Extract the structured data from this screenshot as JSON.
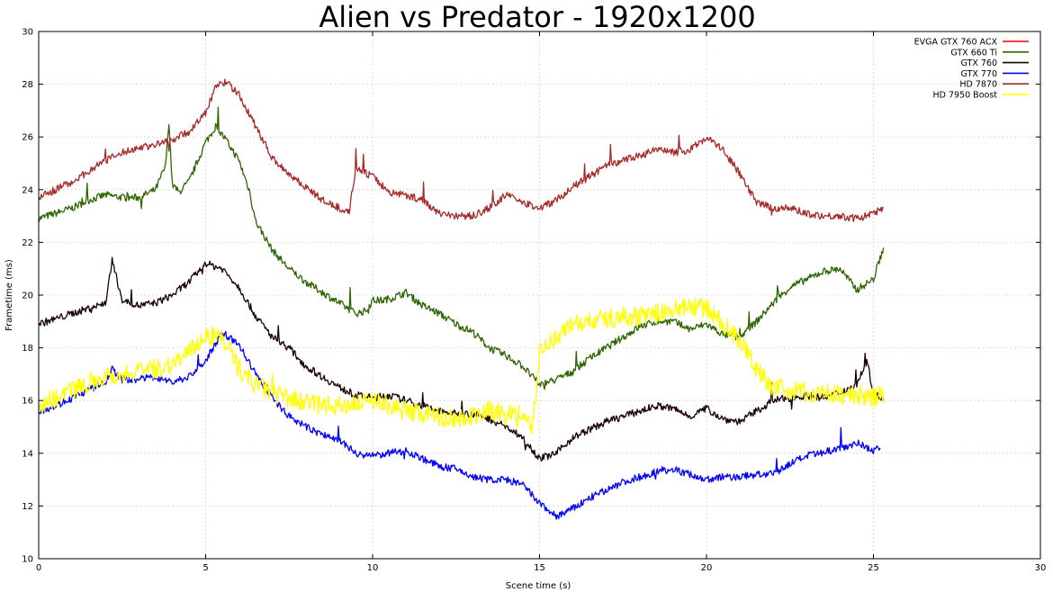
{
  "chart_data": {
    "type": "line",
    "title": "Alien vs Predator - 1920x1200",
    "xlabel": "Scene time (s)",
    "ylabel": "Frametime (ms)",
    "xlim": [
      0,
      30
    ],
    "ylim": [
      10,
      30
    ],
    "xticks": [
      0,
      5,
      10,
      15,
      20,
      25,
      30
    ],
    "yticks": [
      10,
      12,
      14,
      16,
      18,
      20,
      22,
      24,
      26,
      28,
      30
    ],
    "xtick_labels": [
      "0",
      "5",
      "10",
      "15",
      "20",
      "25",
      "30"
    ],
    "ytick_labels": [
      "10",
      "12",
      "14",
      "16",
      "18",
      "20",
      "22",
      "24",
      "26",
      "28",
      "30"
    ],
    "grid": true,
    "legend_position": "top-right",
    "series": [
      {
        "name": "EVGA GTX 760 ACX",
        "color": "#ff0000",
        "x": [],
        "values": []
      },
      {
        "name": "GTX 660 Ti",
        "color": "#2d6500",
        "x": [
          0,
          0.5,
          1,
          1.5,
          2,
          2.5,
          3,
          3.5,
          3.8,
          3.9,
          4.0,
          4.2,
          4.5,
          5,
          5.3,
          5.6,
          6,
          6.3,
          6.5,
          7,
          7.5,
          8,
          8.5,
          9,
          9.5,
          9.8,
          10,
          10.3,
          10.6,
          11,
          11.5,
          12,
          12.5,
          13,
          13.5,
          14,
          14.5,
          15,
          15.5,
          16,
          16.5,
          17,
          17.5,
          18,
          18.5,
          19,
          19.5,
          20,
          20.5,
          21,
          21.5,
          22,
          22.5,
          23,
          23.5,
          24,
          24.5,
          25,
          25.3
        ],
        "values": [
          22.9,
          23.1,
          23.3,
          23.6,
          23.8,
          23.7,
          23.7,
          24.0,
          24.9,
          26.6,
          24.2,
          23.9,
          24.3,
          25.8,
          26.4,
          25.9,
          25.1,
          24.0,
          22.8,
          21.7,
          21.0,
          20.5,
          20.1,
          19.7,
          19.3,
          19.4,
          19.8,
          19.8,
          19.9,
          20.1,
          19.6,
          19.3,
          18.9,
          18.6,
          18.0,
          17.7,
          17.3,
          16.6,
          16.8,
          17.1,
          17.6,
          18.0,
          18.4,
          18.8,
          19.0,
          19.0,
          18.7,
          18.9,
          18.5,
          18.4,
          19.0,
          19.7,
          20.3,
          20.6,
          20.9,
          21.0,
          20.2,
          20.6,
          21.8
        ]
      },
      {
        "name": "GTX 760",
        "color": "#1a0000",
        "x": [
          0,
          0.5,
          1,
          1.5,
          2,
          2.2,
          2.5,
          3,
          3.5,
          4,
          4.5,
          5,
          5.5,
          6,
          6.5,
          7,
          7.5,
          8,
          8.5,
          9,
          9.5,
          10,
          10.5,
          11,
          11.5,
          12,
          12.5,
          13,
          13.5,
          14,
          14.5,
          15,
          15.5,
          16,
          16.5,
          17,
          17.5,
          18,
          18.5,
          19,
          19.5,
          20,
          20.5,
          21,
          21.5,
          22,
          22.5,
          23,
          23.5,
          24,
          24.5,
          24.8,
          25,
          25.3
        ],
        "values": [
          18.9,
          19.1,
          19.3,
          19.5,
          19.7,
          21.3,
          19.8,
          19.6,
          19.7,
          20.0,
          20.5,
          21.2,
          21.0,
          20.3,
          19.2,
          18.4,
          18.0,
          17.3,
          16.9,
          16.5,
          16.2,
          16.1,
          16.2,
          16.0,
          15.8,
          15.6,
          15.5,
          15.5,
          15.3,
          15.0,
          14.6,
          13.8,
          14.0,
          14.6,
          14.9,
          15.2,
          15.4,
          15.6,
          15.8,
          15.7,
          15.4,
          15.7,
          15.3,
          15.2,
          15.6,
          16.0,
          16.1,
          16.2,
          16.1,
          16.3,
          16.6,
          17.5,
          16.3,
          16.0
        ]
      },
      {
        "name": "GTX 770",
        "color": "#0000ff",
        "x": [
          0,
          0.5,
          1,
          1.5,
          2,
          2.2,
          2.5,
          3,
          3.5,
          4,
          4.5,
          5,
          5.5,
          6,
          6.5,
          7,
          7.5,
          8,
          8.5,
          9,
          9.5,
          10,
          10.5,
          11,
          11.5,
          12,
          12.5,
          13,
          13.5,
          14,
          14.5,
          15,
          15.5,
          16,
          16.5,
          17,
          17.5,
          18,
          18.5,
          19,
          19.5,
          20,
          20.5,
          21,
          21.5,
          22,
          22.5,
          23,
          23.5,
          24,
          24.5,
          25,
          25.2
        ],
        "values": [
          15.6,
          15.8,
          16.1,
          16.4,
          16.7,
          17.2,
          16.8,
          16.8,
          16.9,
          16.7,
          16.9,
          17.5,
          18.6,
          18.1,
          17.0,
          16.1,
          15.4,
          15.0,
          14.7,
          14.5,
          14.0,
          13.9,
          14.0,
          14.1,
          13.8,
          13.5,
          13.4,
          13.1,
          13.0,
          13.0,
          12.8,
          12.1,
          11.6,
          11.9,
          12.3,
          12.6,
          12.9,
          13.1,
          13.3,
          13.4,
          13.2,
          13.0,
          13.1,
          13.1,
          13.2,
          13.2,
          13.6,
          13.9,
          14.0,
          14.2,
          14.4,
          14.1,
          14.2
        ]
      },
      {
        "name": "HD 7870",
        "color": "#a52a2a",
        "x": [
          0,
          0.5,
          1,
          1.5,
          2,
          2.5,
          3,
          3.5,
          4,
          4.5,
          5,
          5.3,
          5.6,
          6,
          6.5,
          7,
          7.5,
          8,
          8.5,
          9,
          9.3,
          9.5,
          10,
          10.5,
          11,
          11.5,
          12,
          12.5,
          13,
          13.5,
          14,
          14.5,
          15,
          15.5,
          16,
          16.5,
          17,
          17.5,
          18,
          18.5,
          19,
          19.5,
          20,
          20.5,
          21,
          21.5,
          22,
          22.5,
          23,
          23.5,
          24,
          24.5,
          25,
          25.3
        ],
        "values": [
          23.7,
          24.0,
          24.3,
          24.7,
          25.1,
          25.4,
          25.6,
          25.7,
          25.9,
          26.2,
          26.9,
          27.9,
          28.1,
          27.6,
          26.4,
          25.2,
          24.6,
          24.1,
          23.6,
          23.3,
          23.2,
          24.8,
          24.5,
          23.9,
          23.8,
          23.6,
          23.1,
          23.0,
          23.0,
          23.3,
          23.8,
          23.5,
          23.3,
          23.6,
          24.1,
          24.5,
          24.9,
          25.1,
          25.3,
          25.5,
          25.4,
          25.5,
          26.0,
          25.5,
          24.6,
          23.5,
          23.3,
          23.3,
          23.1,
          23.0,
          23.0,
          22.9,
          23.1,
          23.3
        ]
      },
      {
        "name": "HD 7950 Boost",
        "color": "#ffff00",
        "x": [
          0,
          0.5,
          1,
          1.5,
          2,
          2.5,
          3,
          3.5,
          4,
          4.5,
          5,
          5.5,
          6,
          6.5,
          7,
          7.5,
          8,
          8.5,
          9,
          9.5,
          10,
          10.5,
          11,
          11.5,
          12,
          12.5,
          13,
          13.5,
          14,
          14.5,
          14.8,
          15,
          15.5,
          16,
          16.5,
          17,
          17.5,
          18,
          18.5,
          19,
          19.5,
          20,
          20.5,
          21,
          21.5,
          22,
          22.5,
          23,
          23.5,
          24,
          24.5,
          25,
          25.3
        ],
        "values": [
          15.8,
          16.1,
          16.4,
          16.7,
          16.9,
          17.0,
          17.1,
          17.2,
          17.4,
          17.8,
          18.5,
          18.4,
          17.2,
          16.6,
          16.3,
          16.1,
          15.9,
          15.8,
          15.8,
          15.9,
          16.0,
          15.8,
          15.6,
          15.5,
          15.4,
          15.3,
          15.4,
          15.6,
          15.5,
          15.3,
          15.0,
          17.9,
          18.4,
          18.9,
          19.0,
          19.1,
          19.2,
          19.2,
          19.3,
          19.4,
          19.6,
          19.5,
          18.9,
          18.3,
          17.2,
          16.5,
          16.4,
          16.3,
          16.3,
          16.2,
          16.2,
          16.1,
          16.3
        ]
      }
    ]
  }
}
